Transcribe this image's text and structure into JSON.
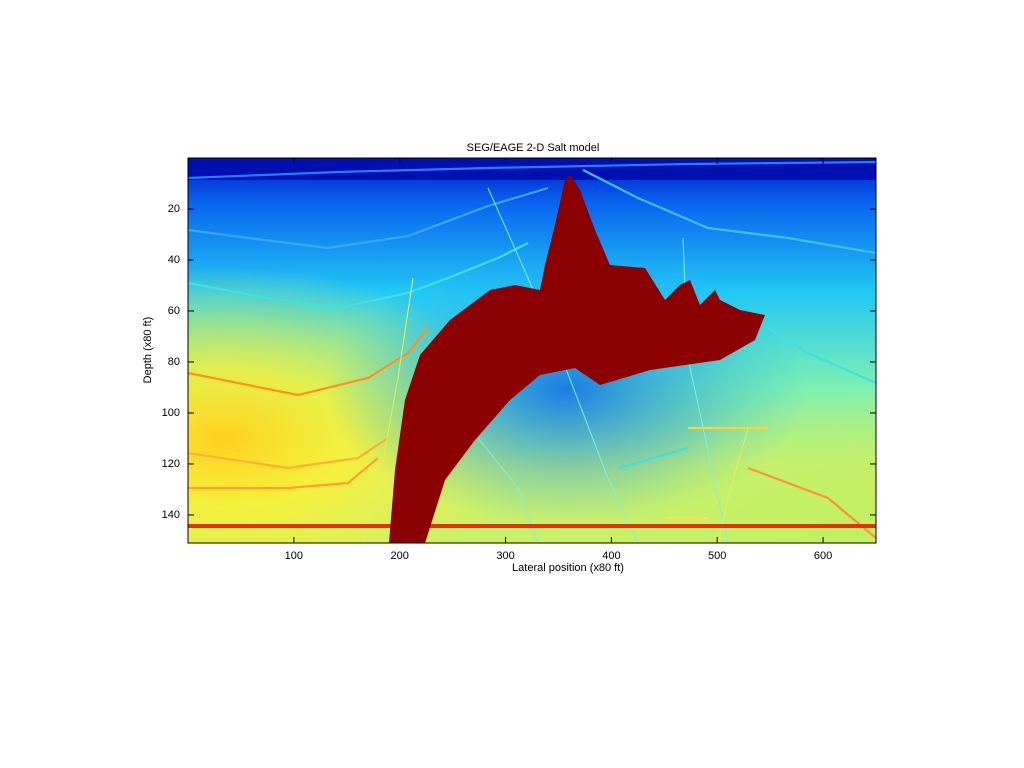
{
  "chart_data": {
    "type": "image",
    "title": "SEG/EAGE 2-D Salt model",
    "xlabel": "Lateral position (x80 ft)",
    "ylabel": "Depth (x80 ft)",
    "xlim": [
      0,
      650
    ],
    "ylim": [
      0,
      151
    ],
    "y_reversed": true,
    "xticks": [
      100,
      200,
      300,
      400,
      500,
      600
    ],
    "yticks": [
      20,
      40,
      60,
      80,
      100,
      120,
      140
    ]
  }
}
